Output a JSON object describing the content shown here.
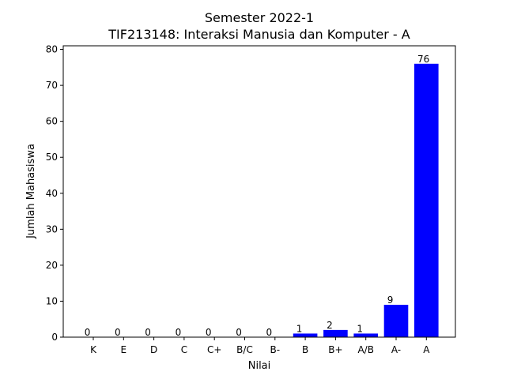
{
  "chart_data": {
    "type": "bar",
    "title": "Semester 2022-1",
    "subtitle": "TIF213148: Interaksi Manusia dan Komputer - A",
    "xlabel": "Nilai",
    "ylabel": "Jumlah Mahasiswa",
    "categories": [
      "K",
      "E",
      "D",
      "C",
      "C+",
      "B/C",
      "B-",
      "B",
      "B+",
      "A/B",
      "A-",
      "A"
    ],
    "values": [
      0,
      0,
      0,
      0,
      0,
      0,
      0,
      1,
      2,
      1,
      9,
      76
    ],
    "data_labels": [
      "0",
      "0",
      "0",
      "0",
      "0",
      "0",
      "0",
      "1",
      "2",
      "1",
      "9",
      "76"
    ],
    "ylim": [
      0,
      81
    ],
    "yticks": [
      0,
      10,
      20,
      30,
      40,
      50,
      60,
      70,
      80
    ],
    "ytick_labels": [
      "0",
      "10",
      "20",
      "30",
      "40",
      "50",
      "60",
      "70",
      "80"
    ],
    "bar_color": "#0000ff",
    "grid": false,
    "legend": "none"
  }
}
